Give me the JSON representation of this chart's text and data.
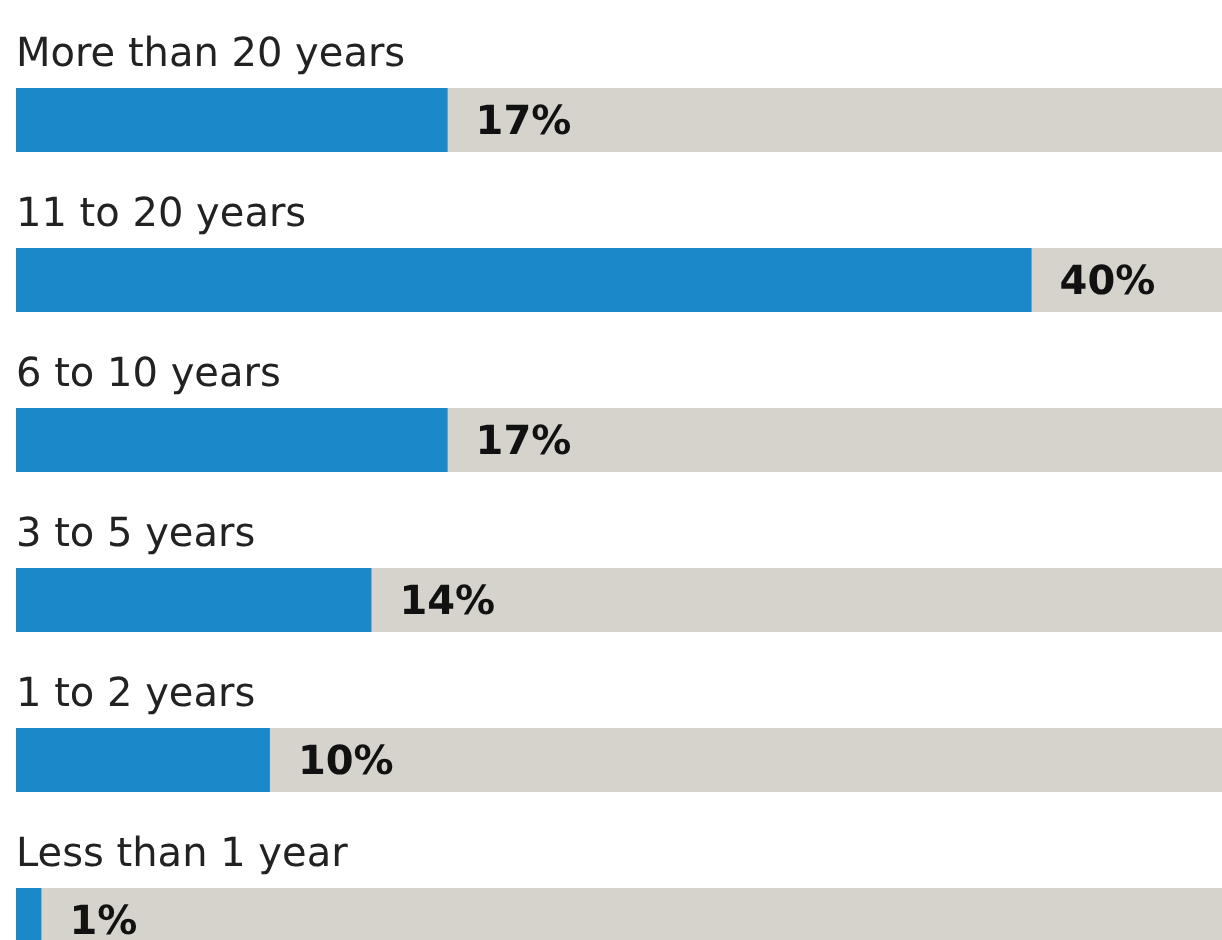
{
  "chart_data": {
    "type": "bar",
    "orientation": "horizontal",
    "categories": [
      "More than 20 years",
      "11 to 20 years",
      "6 to 10 years",
      "3 to 5 years",
      "1 to 2 years",
      "Less than 1 year"
    ],
    "values": [
      17,
      40,
      17,
      14,
      10,
      1
    ],
    "color": "#1a88c9",
    "value_labels": [
      "17%",
      "40%",
      "17%",
      "14%",
      "10%",
      "1%"
    ],
    "xlim": [
      0,
      47.5
    ]
  }
}
